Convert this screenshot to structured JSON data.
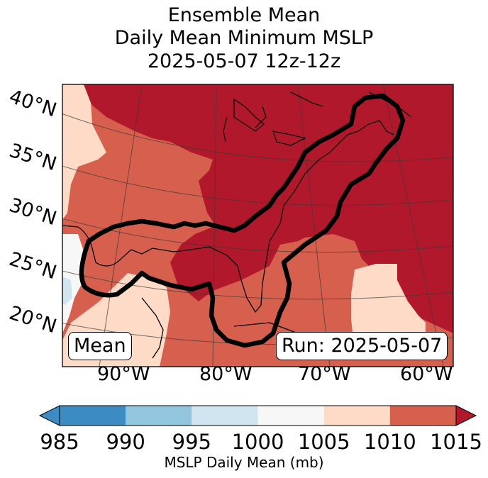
{
  "title": {
    "line1": "Ensemble Mean",
    "line2": "Daily Mean Minimum MSLP",
    "line3": "2025-05-07 12z-12z"
  },
  "map": {
    "lat_labels": [
      "40°N",
      "35°N",
      "30°N",
      "25°N",
      "20°N"
    ],
    "lon_labels": [
      "90°W",
      "80°W",
      "70°W",
      "60°W"
    ],
    "mean_box": "Mean",
    "run_box": "Run: 2025-05-07"
  },
  "colorbar": {
    "ticks": [
      "985",
      "990",
      "995",
      "1000",
      "1005",
      "1010",
      "1015"
    ],
    "label": "MSLP Daily Mean (mb)",
    "colors": [
      "#3c8bc3",
      "#92c5de",
      "#d1e5f0",
      "#f7f7f7",
      "#fddbc7",
      "#d6604d",
      "#b2182b"
    ]
  }
}
